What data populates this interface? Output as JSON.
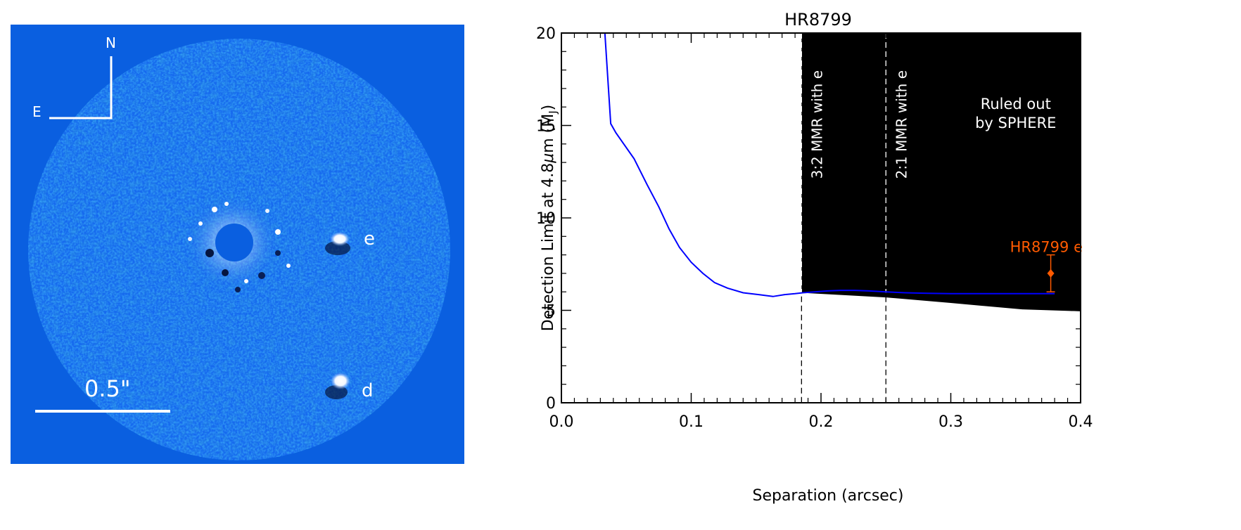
{
  "image_panel": {
    "background": "#0a5fe0",
    "compass": {
      "north": "N",
      "east": "E"
    },
    "scale_bar_label": "0.5\"",
    "planets": [
      {
        "label": "e"
      },
      {
        "label": "d"
      }
    ]
  },
  "chart_data": {
    "type": "line",
    "title": "HR8799",
    "xlabel": "Separation (arcsec)",
    "ylabel": "Detection Limit at 4.8μm (MJ)",
    "ylabel_parts": {
      "main": "Detection Limit at 4.8",
      "mu": "μ",
      "unit": "m (M",
      "sub": "J",
      "close": ")"
    },
    "xlim": [
      0.0,
      0.4
    ],
    "ylim": [
      0,
      20
    ],
    "x_ticks": [
      "0.0",
      "0.1",
      "0.2",
      "0.3",
      "0.4"
    ],
    "y_ticks": [
      "0",
      "5",
      "10",
      "15",
      "20"
    ],
    "series": [
      {
        "color": "#0000ff",
        "x": [
          0.0335,
          0.038,
          0.042,
          0.048,
          0.056,
          0.066,
          0.075,
          0.083,
          0.091,
          0.1,
          0.109,
          0.118,
          0.128,
          0.14,
          0.152,
          0.163,
          0.172,
          0.18,
          0.186,
          0.195,
          0.205,
          0.215,
          0.226,
          0.237,
          0.25,
          0.265,
          0.282,
          0.3,
          0.32,
          0.34,
          0.36,
          0.38
        ],
        "y": [
          20.0,
          15.1,
          14.6,
          14.0,
          13.2,
          11.8,
          10.6,
          9.4,
          8.4,
          7.6,
          7.0,
          6.5,
          6.2,
          5.95,
          5.85,
          5.75,
          5.85,
          5.9,
          5.95,
          6.0,
          6.05,
          6.08,
          6.08,
          6.05,
          6.0,
          5.95,
          5.92,
          5.9,
          5.9,
          5.9,
          5.9,
          5.9
        ]
      }
    ],
    "ruled_out_region": {
      "color": "#000000",
      "x_start": 0.185,
      "x_end": 0.4,
      "lower_boundary": {
        "x": [
          0.185,
          0.25,
          0.3,
          0.355,
          0.4
        ],
        "y": [
          5.95,
          5.7,
          5.4,
          5.05,
          4.95
        ]
      },
      "label_lines": [
        "Ruled out",
        "by SPHERE"
      ]
    },
    "vertical_lines": [
      {
        "x": 0.185,
        "label": "3:2 MMR with e"
      },
      {
        "x": 0.25,
        "label": "2:1 MMR with e"
      }
    ],
    "planet_point": {
      "label": "HR8799 e",
      "color": "#ff5a00",
      "x": 0.377,
      "y": 7.0,
      "err_low": 6.0,
      "err_high": 8.0
    }
  }
}
